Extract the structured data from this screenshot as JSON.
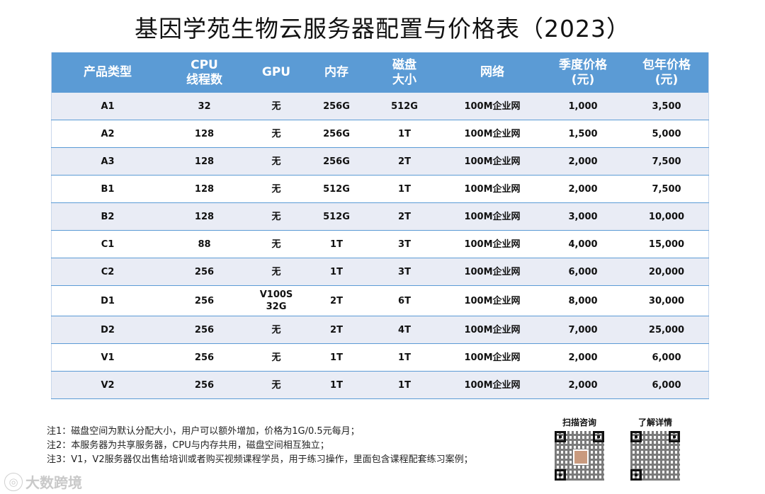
{
  "title": "基因学苑生物云服务器配置与价格表（2023）",
  "table": {
    "headers": [
      {
        "line1": "产品类型",
        "line2": ""
      },
      {
        "line1": "CPU",
        "line2": "线程数"
      },
      {
        "line1": "GPU",
        "line2": ""
      },
      {
        "line1": "内存",
        "line2": ""
      },
      {
        "line1": "磁盘",
        "line2": "大小"
      },
      {
        "line1": "网络",
        "line2": ""
      },
      {
        "line1": "季度价格",
        "line2": "(元)"
      },
      {
        "line1": "包年价格",
        "line2": "(元)"
      }
    ],
    "rows": [
      {
        "type": "A1",
        "cpu": "32",
        "gpu": "无",
        "gpu2": "",
        "mem": "256G",
        "disk": "512G",
        "net": "100M企业网",
        "quarter": "1,000",
        "year": "3,500"
      },
      {
        "type": "A2",
        "cpu": "128",
        "gpu": "无",
        "gpu2": "",
        "mem": "256G",
        "disk": "1T",
        "net": "100M企业网",
        "quarter": "1,500",
        "year": "5,000"
      },
      {
        "type": "A3",
        "cpu": "128",
        "gpu": "无",
        "gpu2": "",
        "mem": "256G",
        "disk": "2T",
        "net": "100M企业网",
        "quarter": "2,000",
        "year": "7,500"
      },
      {
        "type": "B1",
        "cpu": "128",
        "gpu": "无",
        "gpu2": "",
        "mem": "512G",
        "disk": "1T",
        "net": "100M企业网",
        "quarter": "2,000",
        "year": "7,500"
      },
      {
        "type": "B2",
        "cpu": "128",
        "gpu": "无",
        "gpu2": "",
        "mem": "512G",
        "disk": "2T",
        "net": "100M企业网",
        "quarter": "3,000",
        "year": "10,000"
      },
      {
        "type": "C1",
        "cpu": "88",
        "gpu": "无",
        "gpu2": "",
        "mem": "1T",
        "disk": "3T",
        "net": "100M企业网",
        "quarter": "4,000",
        "year": "15,000"
      },
      {
        "type": "C2",
        "cpu": "256",
        "gpu": "无",
        "gpu2": "",
        "mem": "1T",
        "disk": "3T",
        "net": "100M企业网",
        "quarter": "6,000",
        "year": "20,000"
      },
      {
        "type": "D1",
        "cpu": "256",
        "gpu": "V100S",
        "gpu2": "32G",
        "mem": "2T",
        "disk": "6T",
        "net": "100M企业网",
        "quarter": "8,000",
        "year": "30,000"
      },
      {
        "type": "D2",
        "cpu": "256",
        "gpu": "无",
        "gpu2": "",
        "mem": "2T",
        "disk": "4T",
        "net": "100M企业网",
        "quarter": "7,000",
        "year": "25,000"
      },
      {
        "type": "V1",
        "cpu": "256",
        "gpu": "无",
        "gpu2": "",
        "mem": "1T",
        "disk": "1T",
        "net": "100M企业网",
        "quarter": "2,000",
        "year": "6,000"
      },
      {
        "type": "V2",
        "cpu": "256",
        "gpu": "无",
        "gpu2": "",
        "mem": "1T",
        "disk": "1T",
        "net": "100M企业网",
        "quarter": "2,000",
        "year": "6,000"
      }
    ]
  },
  "notes": [
    "注1：磁盘空间为默认分配大小，用户可以额外增加，价格为1G/0.5元每月；",
    "注2：本服务器为共享服务器，CPU与内存共用，磁盘空间相互独立；",
    "注3：V1，V2服务器仅出售给培训或者购买视频课程学员，用于练习操作，里面包含课程配套练习案例；"
  ],
  "qr": {
    "left_label": "扫描咨询",
    "right_label": "了解详情"
  },
  "watermark": {
    "text": "大数跨境",
    "icon": "brand-logo-icon"
  },
  "colors": {
    "header_bg": "#5b9bd5",
    "stripe_bg": "#e9ecf5"
  }
}
